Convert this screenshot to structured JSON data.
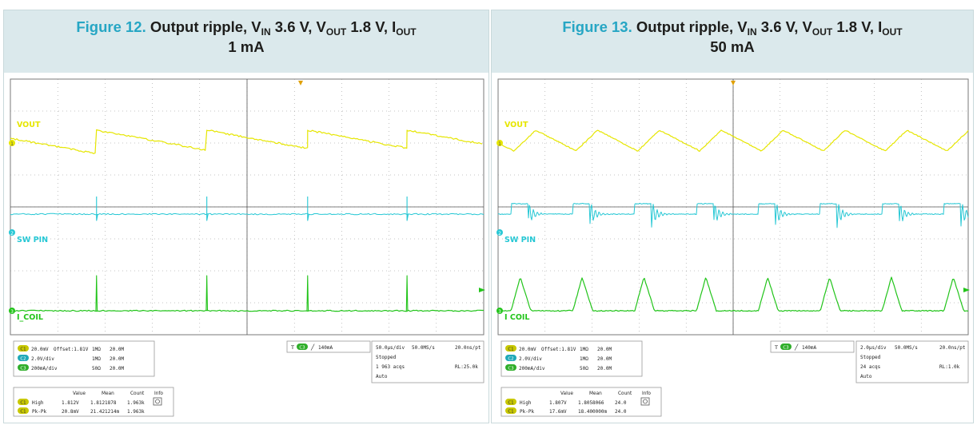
{
  "figures": [
    {
      "number": "Figure 12.",
      "title_prefix": "Output ripple, V",
      "vin_sub": "IN",
      "mid1": " 3.6 V, V",
      "vout_sub": "OUT",
      "mid2": " 1.8 V, I",
      "iout_sub": "OUT",
      "load": "1 mA",
      "traces": {
        "ch1": "VOUT",
        "ch2": "SW PIN",
        "ch3": "I_COIL"
      },
      "channels": [
        {
          "badge": "C1",
          "scale": "20.0mV",
          "offset": "Offset:1.81V",
          "coupling": "1MΩ",
          "bw": "20.0M"
        },
        {
          "badge": "C2",
          "scale": "2.0V/div",
          "offset": "",
          "coupling": "1MΩ",
          "bw": "20.0M"
        },
        {
          "badge": "C3",
          "scale": "200mA/div",
          "offset": "",
          "coupling": "50Ω",
          "bw": "20.0M"
        }
      ],
      "trigger": {
        "badge": "C3",
        "level": "140mA"
      },
      "timebase": {
        "div": "50.0μs/div",
        "rate": "50.0MS/s",
        "pt": "20.0ns/pt",
        "state": "Stopped",
        "acqs": "1 963 acqs",
        "rl": "RL:25.0k",
        "mode": "Auto"
      },
      "measure_headers": [
        "Value",
        "Mean",
        "Count",
        "Info"
      ],
      "measurements": [
        {
          "badge": "C1",
          "name": "High",
          "value": "1.812V",
          "mean": "1.8121878",
          "count": "1.963k"
        },
        {
          "badge": "C1",
          "name": "Pk-Pk",
          "value": "20.8mV",
          "mean": "21.421214m",
          "count": "1.963k"
        }
      ],
      "waveform": {
        "type": "pfm",
        "ripple_periods": 4,
        "ripple_mv": 20.8
      }
    },
    {
      "number": "Figure 13.",
      "title_prefix": "Output ripple, V",
      "vin_sub": "IN",
      "mid1": " 3.6 V, V",
      "vout_sub": "OUT",
      "mid2": " 1.8 V, I",
      "iout_sub": "OUT",
      "load": "50 mA",
      "traces": {
        "ch1": "VOUT",
        "ch2": "SW PIN",
        "ch3": "I COIL"
      },
      "channels": [
        {
          "badge": "C1",
          "scale": "20.0mV",
          "offset": "Offset:1.81V",
          "coupling": "1MΩ",
          "bw": "20.0M"
        },
        {
          "badge": "C2",
          "scale": "2.0V/div",
          "offset": "",
          "coupling": "1MΩ",
          "bw": "20.0M"
        },
        {
          "badge": "C3",
          "scale": "200mA/div",
          "offset": "",
          "coupling": "50Ω",
          "bw": "20.0M"
        }
      ],
      "trigger": {
        "badge": "C3",
        "level": "140mA"
      },
      "timebase": {
        "div": "2.0μs/div",
        "rate": "50.0MS/s",
        "pt": "20.0ns/pt",
        "state": "Stopped",
        "acqs": "24 acqs",
        "rl": "RL:1.0k",
        "mode": "Auto"
      },
      "measure_headers": [
        "Value",
        "Mean",
        "Count",
        "Info"
      ],
      "measurements": [
        {
          "badge": "C1",
          "name": "High",
          "value": "1.807V",
          "mean": "1.8058066",
          "count": "24.0"
        },
        {
          "badge": "C1",
          "name": "Pk-Pk",
          "value": "17.6mV",
          "mean": "18.400000m",
          "count": "24.0"
        }
      ],
      "waveform": {
        "type": "pwm",
        "ripple_periods": 8,
        "ripple_mv": 17.6
      }
    }
  ],
  "colors": {
    "ch1": "#e6e600",
    "ch2": "#25c7d4",
    "ch3": "#22c41a",
    "grid": "#8a8a8a",
    "badge_c1": "#c8c800",
    "badge_c2": "#1fa9b8",
    "badge_c3": "#2fae2a"
  },
  "chart_data": [
    {
      "type": "line",
      "title": "Figure 12. Output ripple, VIN 3.6 V, VOUT 1.8 V, IOUT 1 mA",
      "series": [
        {
          "name": "VOUT"
        },
        {
          "name": "SW PIN"
        },
        {
          "name": "I_COIL"
        }
      ],
      "timebase": "50.0μs/div",
      "pk_pk": "20.8mV"
    },
    {
      "type": "line",
      "title": "Figure 13. Output ripple, VIN 3.6 V, VOUT 1.8 V, IOUT 50 mA",
      "series": [
        {
          "name": "VOUT"
        },
        {
          "name": "SW PIN"
        },
        {
          "name": "I COIL"
        }
      ],
      "timebase": "2.0μs/div",
      "pk_pk": "17.6mV"
    }
  ]
}
